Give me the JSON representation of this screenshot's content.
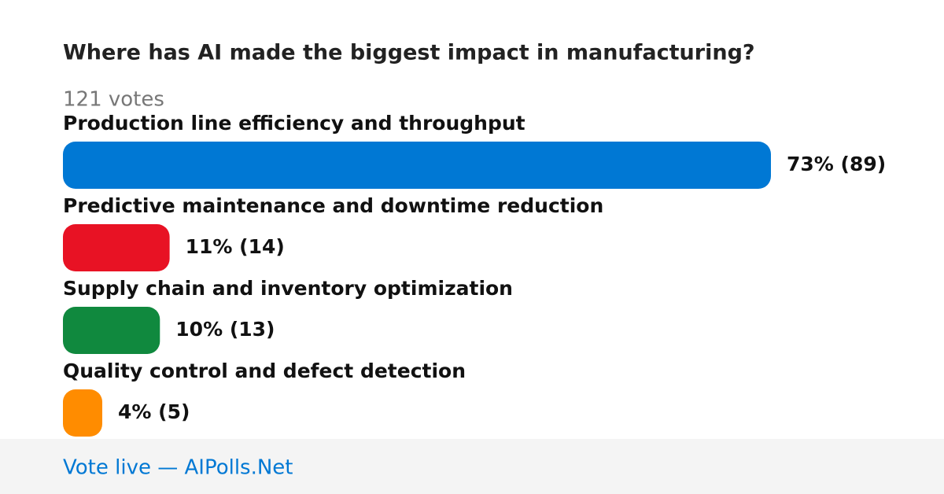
{
  "chart_data": {
    "type": "bar",
    "orientation": "horizontal",
    "title": "Where has AI made the biggest impact in manufacturing?",
    "subtitle": "121 votes",
    "categories": [
      "Production line efficiency and throughput",
      "Predictive maintenance and downtime reduction",
      "Supply chain and inventory optimization",
      "Quality control and defect detection"
    ],
    "values": [
      73,
      11,
      10,
      4
    ],
    "value_labels": [
      "73% (89)",
      "11% (14)",
      "10% (13)",
      "4% (5)"
    ],
    "colors": [
      "#0078d4",
      "#e81224",
      "#10893e",
      "#ff8c00"
    ],
    "footer": "Vote live — AIPolls.Net"
  }
}
